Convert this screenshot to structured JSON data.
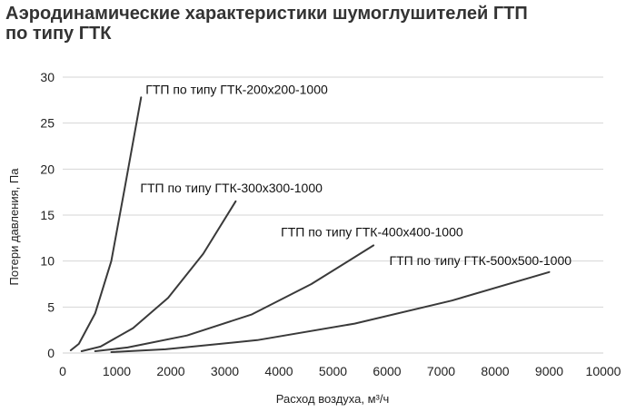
{
  "title": {
    "line1": "Аэродинамические характеристики шумоглушителей ГТП",
    "line2": "по типу ГТК"
  },
  "chart_data": {
    "type": "line",
    "xlabel": "Расход воздуха, м³/ч",
    "ylabel": "Потери давления, Па",
    "xlim": [
      0,
      10000
    ],
    "ylim": [
      0,
      30
    ],
    "x_ticks": [
      0,
      1000,
      2000,
      3000,
      4000,
      5000,
      6000,
      7000,
      8000,
      9000,
      10000
    ],
    "y_ticks": [
      0,
      5,
      10,
      15,
      20,
      25,
      30
    ],
    "grid": "horizontal",
    "series": [
      {
        "name": "ГТП по типу ГТК-200х200-1000",
        "x": [
          150,
          300,
          600,
          900,
          1150,
          1450
        ],
        "y": [
          0.3,
          1.0,
          4.3,
          10.0,
          18.0,
          27.8
        ]
      },
      {
        "name": "ГТП по типу ГТК-300х300-1000",
        "x": [
          350,
          700,
          1300,
          1950,
          2600,
          3200
        ],
        "y": [
          0.2,
          0.7,
          2.7,
          6.0,
          10.8,
          16.5
        ]
      },
      {
        "name": "ГТП по типу ГТК-400х400-1000",
        "x": [
          600,
          1200,
          2300,
          3500,
          4600,
          5750
        ],
        "y": [
          0.2,
          0.6,
          1.9,
          4.2,
          7.5,
          11.7
        ]
      },
      {
        "name": "ГТП по типу ГТК-500х500-1000",
        "x": [
          900,
          1900,
          3600,
          5400,
          7200,
          9000
        ],
        "y": [
          0.1,
          0.4,
          1.4,
          3.2,
          5.7,
          8.8
        ]
      }
    ]
  }
}
